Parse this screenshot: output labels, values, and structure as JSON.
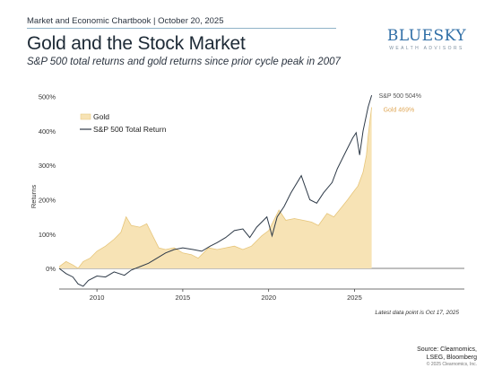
{
  "header": {
    "top_line": "Market and Economic Chartbook | October 20, 2025",
    "title": "Gold and the Stock Market",
    "subtitle": "S&P 500 total returns and gold returns since prior cycle peak in 2007"
  },
  "logo": {
    "main": "BLUESKY",
    "sub": "WEALTH ADVISORS"
  },
  "footer": {
    "latest_note": "Latest data point is Oct 17, 2025",
    "source_line1": "Source: Clearnomics,",
    "source_line2": "LSEG, Bloomberg",
    "copyright": "© 2025 Clearnomics, Inc."
  },
  "colors": {
    "gold_fill": "#f7e3b5",
    "gold_line": "#e6c57a",
    "sp500_line": "#2e3a48",
    "axis": "#444444",
    "gold_label": "#e0a95a",
    "sp_label": "#555555"
  },
  "chart_data": {
    "type": "line",
    "ylabel": "Returns",
    "xlabel": "",
    "xlim": [
      2007.8,
      2031.4
    ],
    "ylim": [
      -60,
      520
    ],
    "y_ticks": [
      0,
      100,
      200,
      300,
      400,
      500
    ],
    "y_tick_labels": [
      "0%",
      "100%",
      "200%",
      "300%",
      "400%",
      "500%"
    ],
    "x_ticks": [
      2010,
      2015,
      2020,
      2025
    ],
    "x_tick_labels": [
      "2010",
      "2015",
      "2020",
      "2025"
    ],
    "legend_position": "top-left",
    "series": [
      {
        "name": "Gold",
        "style": "area",
        "end_label": "Gold 469%",
        "points": [
          [
            2007.8,
            5
          ],
          [
            2008.2,
            20
          ],
          [
            2008.6,
            10
          ],
          [
            2008.9,
            0
          ],
          [
            2009.2,
            20
          ],
          [
            2009.6,
            30
          ],
          [
            2010.0,
            50
          ],
          [
            2010.5,
            65
          ],
          [
            2011.0,
            85
          ],
          [
            2011.4,
            105
          ],
          [
            2011.7,
            150
          ],
          [
            2012.0,
            125
          ],
          [
            2012.5,
            120
          ],
          [
            2012.9,
            130
          ],
          [
            2013.3,
            90
          ],
          [
            2013.6,
            60
          ],
          [
            2014.0,
            55
          ],
          [
            2014.5,
            60
          ],
          [
            2015.0,
            45
          ],
          [
            2015.5,
            40
          ],
          [
            2015.9,
            30
          ],
          [
            2016.5,
            60
          ],
          [
            2017.0,
            55
          ],
          [
            2017.5,
            60
          ],
          [
            2018.0,
            65
          ],
          [
            2018.5,
            55
          ],
          [
            2019.0,
            65
          ],
          [
            2019.6,
            95
          ],
          [
            2020.0,
            110
          ],
          [
            2020.6,
            170
          ],
          [
            2021.0,
            140
          ],
          [
            2021.5,
            145
          ],
          [
            2022.0,
            140
          ],
          [
            2022.5,
            135
          ],
          [
            2022.9,
            125
          ],
          [
            2023.4,
            160
          ],
          [
            2023.8,
            150
          ],
          [
            2024.2,
            175
          ],
          [
            2024.6,
            200
          ],
          [
            2024.9,
            220
          ],
          [
            2025.2,
            240
          ],
          [
            2025.5,
            280
          ],
          [
            2025.7,
            330
          ],
          [
            2025.8,
            385
          ],
          [
            2025.9,
            430
          ],
          [
            2026.0,
            469
          ]
        ]
      },
      {
        "name": "S&P 500 Total Return",
        "style": "line",
        "end_label": "S&P 500 504%",
        "points": [
          [
            2007.8,
            0
          ],
          [
            2008.2,
            -15
          ],
          [
            2008.6,
            -25
          ],
          [
            2008.9,
            -45
          ],
          [
            2009.2,
            -52
          ],
          [
            2009.5,
            -35
          ],
          [
            2010.0,
            -22
          ],
          [
            2010.5,
            -25
          ],
          [
            2011.0,
            -10
          ],
          [
            2011.6,
            -20
          ],
          [
            2012.0,
            -5
          ],
          [
            2012.5,
            5
          ],
          [
            2013.0,
            15
          ],
          [
            2013.5,
            30
          ],
          [
            2014.0,
            45
          ],
          [
            2014.5,
            55
          ],
          [
            2015.0,
            60
          ],
          [
            2015.6,
            55
          ],
          [
            2016.1,
            50
          ],
          [
            2016.6,
            65
          ],
          [
            2017.0,
            75
          ],
          [
            2017.5,
            90
          ],
          [
            2018.0,
            110
          ],
          [
            2018.5,
            115
          ],
          [
            2018.9,
            90
          ],
          [
            2019.3,
            120
          ],
          [
            2019.9,
            150
          ],
          [
            2020.2,
            95
          ],
          [
            2020.5,
            150
          ],
          [
            2020.9,
            180
          ],
          [
            2021.3,
            220
          ],
          [
            2021.9,
            270
          ],
          [
            2022.4,
            200
          ],
          [
            2022.8,
            190
          ],
          [
            2023.2,
            220
          ],
          [
            2023.7,
            250
          ],
          [
            2024.0,
            290
          ],
          [
            2024.5,
            340
          ],
          [
            2024.9,
            380
          ],
          [
            2025.1,
            395
          ],
          [
            2025.3,
            330
          ],
          [
            2025.5,
            400
          ],
          [
            2025.8,
            470
          ],
          [
            2026.0,
            504
          ]
        ]
      }
    ]
  }
}
